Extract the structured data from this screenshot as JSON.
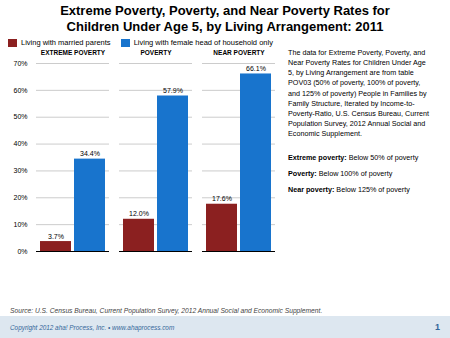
{
  "chart_data": {
    "type": "bar",
    "title": "Extreme Poverty, Poverty, and Near Poverty Rates for\nChildren Under Age 5, by Living Arrangement: 2011",
    "categories": [
      "EXTREME POVERTY",
      "POVERTY",
      "NEAR POVERTY"
    ],
    "series": [
      {
        "name": "Living with married parents",
        "color": "#8B2020",
        "values": [
          3.7,
          12.0,
          17.6
        ],
        "value_labels": [
          "3.7%",
          "12.0%",
          "17.6%"
        ]
      },
      {
        "name": "Living with female head of household only",
        "color": "#1874CD",
        "values": [
          34.4,
          57.9,
          66.1
        ],
        "value_labels": [
          "34.4%",
          "57.9%",
          "66.1%"
        ]
      }
    ],
    "ylim": [
      0,
      70
    ],
    "yticks": [
      {
        "value": 0,
        "label": "0%"
      },
      {
        "value": 10,
        "label": "10%"
      },
      {
        "value": 20,
        "label": "20%"
      },
      {
        "value": 30,
        "label": "30%"
      },
      {
        "value": 40,
        "label": "40%"
      },
      {
        "value": 50,
        "label": "50%"
      },
      {
        "value": 60,
        "label": "60%"
      },
      {
        "value": 70,
        "label": "70%"
      }
    ],
    "grid": true,
    "legend": "top-left",
    "data_labels": true,
    "annotations": [
      "The data for Extreme Poverty, Poverty, and\nNear Poverty Rates for Children Under Age\n5, by Living Arrangement are from table\nPOV03 (50% of poverty, 100% of poverty,\nand 125% of poverty) People in Families by\nFamily Structure, Iterated by Income-to-\nPoverty-Ratio, U.S. Census Bureau, Current\nPopulation Survey, 2012 Annual Social and\nEconomic Supplement.",
      "Extreme poverty: Below 50% of poverty",
      "Poverty: Below 100% of poverty",
      "Near poverty: Below 125% of poverty",
      "Source: U.S. Census Bureau, Current Population Survey, 2012 Annual Social and Economic Supplement.",
      "Copyright 2012 aha! Process, Inc.  •  www.ahaprocess.com",
      "1"
    ]
  }
}
